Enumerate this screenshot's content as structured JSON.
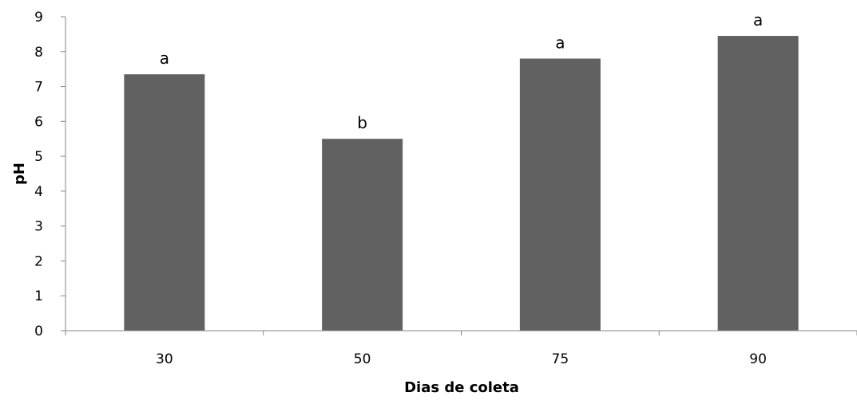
{
  "chart_data": {
    "type": "bar",
    "title": "",
    "xlabel": "Dias de coleta",
    "ylabel": "pH",
    "categories": [
      "30",
      "50",
      "75",
      "90"
    ],
    "values": [
      7.35,
      5.5,
      7.8,
      8.45
    ],
    "data_labels": [
      "a",
      "b",
      "a",
      "a"
    ],
    "ylim": [
      0,
      9
    ],
    "yticks": [
      "0",
      "1",
      "2",
      "3",
      "4",
      "5",
      "6",
      "7",
      "8",
      "9"
    ],
    "grid": false,
    "legend": "none",
    "bar_color": "#616161",
    "axis_color": "#868686"
  }
}
